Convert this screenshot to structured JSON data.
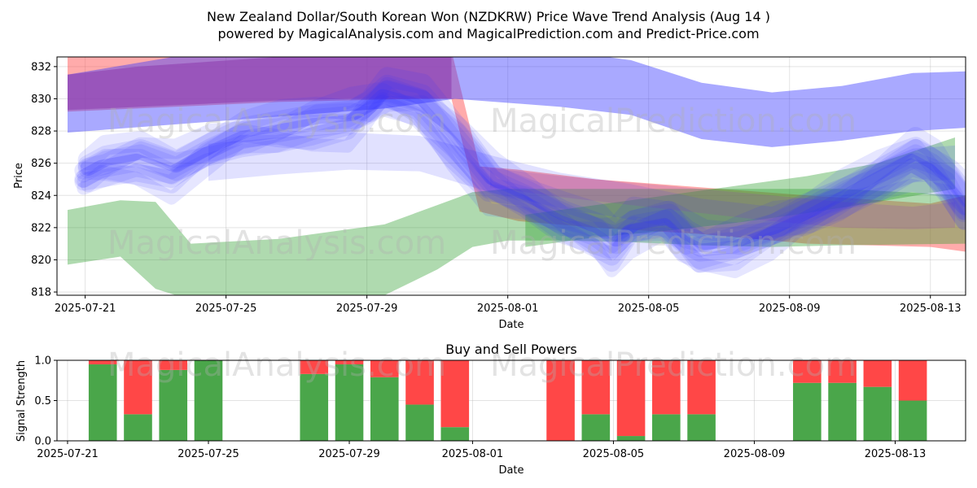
{
  "header": {
    "title_line1": "New Zealand Dollar/South Korean Won (NZDKRW) Price Wave Trend Analysis (Aug 14 )",
    "title_line2": "powered by MagicalAnalysis.com and MagicalPrediction.com and Predict-Price.com"
  },
  "watermarks": {
    "left": "MagicalAnalysis.com",
    "right": "MagicalPrediction.com"
  },
  "colors": {
    "blue": "#3333ff",
    "red": "#ff4444",
    "green": "#2e9e2e",
    "purple": "#9040b0",
    "buy": "#4aa64a",
    "sell": "#ff4747"
  },
  "chart_data": [
    {
      "type": "area",
      "title": "",
      "xlabel": "Date",
      "ylabel": "Price",
      "x_start": "2025-07-20",
      "xlim": [
        -0.3,
        25.5
      ],
      "ylim": [
        817.8,
        832.6
      ],
      "x_ticks": [
        {
          "day": 0.5,
          "label": "2025-07-21"
        },
        {
          "day": 4.5,
          "label": "2025-07-25"
        },
        {
          "day": 8.5,
          "label": "2025-07-29"
        },
        {
          "day": 12.5,
          "label": "2025-08-01"
        },
        {
          "day": 16.5,
          "label": "2025-08-05"
        },
        {
          "day": 20.5,
          "label": "2025-08-09"
        },
        {
          "day": 24.5,
          "label": "2025-08-13"
        }
      ],
      "y_ticks": [
        818,
        820,
        822,
        824,
        826,
        828,
        830,
        832
      ],
      "series": [
        {
          "name": "red-band",
          "color": "#ff4444",
          "alpha": 0.45,
          "x": [
            0,
            3,
            6,
            10,
            10.9,
            11.7,
            12.8,
            15,
            18,
            21,
            24.5,
            25.5
          ],
          "upper": [
            833,
            833,
            833,
            833,
            833,
            825.8,
            825.6,
            825,
            824.5,
            824,
            823.5,
            824
          ],
          "lower": [
            829.2,
            829.5,
            829.8,
            830,
            830,
            823,
            822.4,
            822,
            821.6,
            821,
            820.8,
            820.5
          ]
        },
        {
          "name": "green-band",
          "color": "#2e9e2e",
          "alpha": 0.38,
          "x": [
            0,
            1.5,
            2.5,
            3.5,
            6,
            9,
            10.5,
            11.5,
            12.5,
            14,
            16,
            18,
            20,
            22,
            25.5
          ],
          "upper": [
            823.1,
            823.7,
            823.6,
            821,
            821.3,
            822.2,
            823.4,
            824.2,
            824.4,
            824.4,
            824.4,
            824.4,
            824.4,
            824.4,
            824
          ],
          "lower": [
            819.7,
            820.2,
            818.2,
            817.5,
            817.5,
            817.8,
            819.4,
            820.8,
            821.2,
            821.2,
            821.1,
            820.9,
            820.8,
            820.9,
            821
          ]
        },
        {
          "name": "green-rise",
          "color": "#2e9e2e",
          "alpha": 0.38,
          "x": [
            13,
            15,
            17,
            19,
            21,
            23,
            25.2
          ],
          "upper": [
            822.8,
            823.4,
            824,
            824.6,
            825.2,
            826,
            827.6
          ],
          "lower": [
            820.8,
            821.4,
            821.8,
            822.3,
            822.9,
            823.6,
            824.4
          ]
        },
        {
          "name": "blue-upper-band",
          "color": "#3333ff",
          "alpha": 0.42,
          "x": [
            0,
            3,
            6,
            9,
            11,
            14,
            16,
            18,
            20,
            22,
            24,
            25.5
          ],
          "upper": [
            831.5,
            832.6,
            833,
            833,
            833,
            833,
            832.4,
            831,
            830.4,
            830.8,
            831.6,
            831.7
          ],
          "lower": [
            827.9,
            828.4,
            828.9,
            829.4,
            830,
            829.5,
            829,
            827.5,
            827,
            827.4,
            828,
            828.2
          ]
        },
        {
          "name": "blue-mid-band",
          "color": "#3333ff",
          "alpha": 0.15,
          "x": [
            4,
            6,
            8,
            10,
            12,
            14,
            16,
            18,
            20,
            22,
            24,
            25.2
          ],
          "upper": [
            827.2,
            827.6,
            827.9,
            827.7,
            826.5,
            825.4,
            824.7,
            823.8,
            823.3,
            825.1,
            826.9,
            827.1
          ],
          "lower": [
            824.9,
            825.3,
            825.6,
            825.5,
            824.2,
            823.2,
            822.5,
            821.6,
            821.2,
            823,
            824.8,
            825
          ]
        },
        {
          "name": "purple-band",
          "color": "#9040b0",
          "alpha": 0.62,
          "x": [
            0,
            2,
            4,
            6,
            8,
            10,
            10.9
          ],
          "upper": [
            831.5,
            832,
            832.3,
            832.6,
            832.8,
            833,
            833
          ],
          "lower": [
            829.3,
            829.5,
            829.7,
            829.9,
            830,
            830,
            830
          ]
        },
        {
          "name": "purple-lower-band",
          "color": "#9040b0",
          "alpha": 0.22,
          "x": [
            12,
            14,
            16,
            18,
            20,
            22,
            24,
            25.2
          ],
          "upper": [
            825.7,
            825.2,
            824.8,
            824.4,
            824,
            823.6,
            823.3,
            823.6
          ],
          "lower": [
            824.5,
            823.9,
            823.4,
            822.9,
            822.4,
            822,
            821.9,
            822
          ]
        }
      ],
      "wave_base": {
        "x": [
          0.5,
          1,
          2,
          3,
          4,
          5,
          6,
          7,
          8,
          8.5,
          9,
          10,
          11,
          12,
          13,
          14,
          15,
          15.5,
          16,
          17,
          17.5,
          18,
          19,
          20,
          21,
          22,
          23,
          24,
          24.5,
          25,
          25.5
        ],
        "y": [
          825.2,
          825.8,
          826.2,
          825.4,
          826.6,
          827.6,
          828,
          828.4,
          828.6,
          829.2,
          830.2,
          829.6,
          827.2,
          824.6,
          823.6,
          822.4,
          821.6,
          820.8,
          821.8,
          822.2,
          821.2,
          820.6,
          820.8,
          821.6,
          822.6,
          823.8,
          825,
          826.2,
          825.6,
          824.6,
          823.2
        ]
      },
      "wave_offsets": [
        0,
        0.6,
        -0.6,
        1.2,
        -1.1,
        0.3,
        -0.3,
        1.8,
        -1.6,
        0.9,
        -0.9,
        1.5
      ]
    },
    {
      "type": "bar",
      "title": "Buy and Sell Powers",
      "xlabel": "Date",
      "ylabel": "Signal Strength",
      "xlim": [
        -0.3,
        25.5
      ],
      "ylim": [
        0,
        1
      ],
      "y_ticks": [
        0,
        0.5,
        1.0
      ],
      "x_ticks": [
        {
          "day": 0,
          "label": "2025-07-21"
        },
        {
          "day": 4,
          "label": "2025-07-25"
        },
        {
          "day": 8,
          "label": "2025-07-29"
        },
        {
          "day": 11.5,
          "label": "2025-08-01"
        },
        {
          "day": 15.5,
          "label": "2025-08-05"
        },
        {
          "day": 19.5,
          "label": "2025-08-09"
        },
        {
          "day": 23.5,
          "label": "2025-08-13"
        }
      ],
      "bars": [
        {
          "day": 1,
          "buy": 0.95,
          "sell": 0.05
        },
        {
          "day": 2,
          "buy": 0.33,
          "sell": 0.67
        },
        {
          "day": 3,
          "buy": 0.88,
          "sell": 0.12
        },
        {
          "day": 4,
          "buy": 1.0,
          "sell": 0.0
        },
        {
          "day": 7,
          "buy": 0.83,
          "sell": 0.17
        },
        {
          "day": 8,
          "buy": 0.95,
          "sell": 0.05
        },
        {
          "day": 9,
          "buy": 0.79,
          "sell": 0.21
        },
        {
          "day": 10,
          "buy": 0.45,
          "sell": 0.55
        },
        {
          "day": 11,
          "buy": 0.17,
          "sell": 0.83
        },
        {
          "day": 14,
          "buy": 0.0,
          "sell": 1.0
        },
        {
          "day": 15,
          "buy": 0.33,
          "sell": 0.67
        },
        {
          "day": 16,
          "buy": 0.06,
          "sell": 0.94
        },
        {
          "day": 17,
          "buy": 0.33,
          "sell": 0.67
        },
        {
          "day": 18,
          "buy": 0.33,
          "sell": 0.67
        },
        {
          "day": 21,
          "buy": 0.72,
          "sell": 0.28
        },
        {
          "day": 22,
          "buy": 0.72,
          "sell": 0.28
        },
        {
          "day": 23,
          "buy": 0.67,
          "sell": 0.33
        },
        {
          "day": 24,
          "buy": 0.5,
          "sell": 0.5
        }
      ]
    }
  ]
}
